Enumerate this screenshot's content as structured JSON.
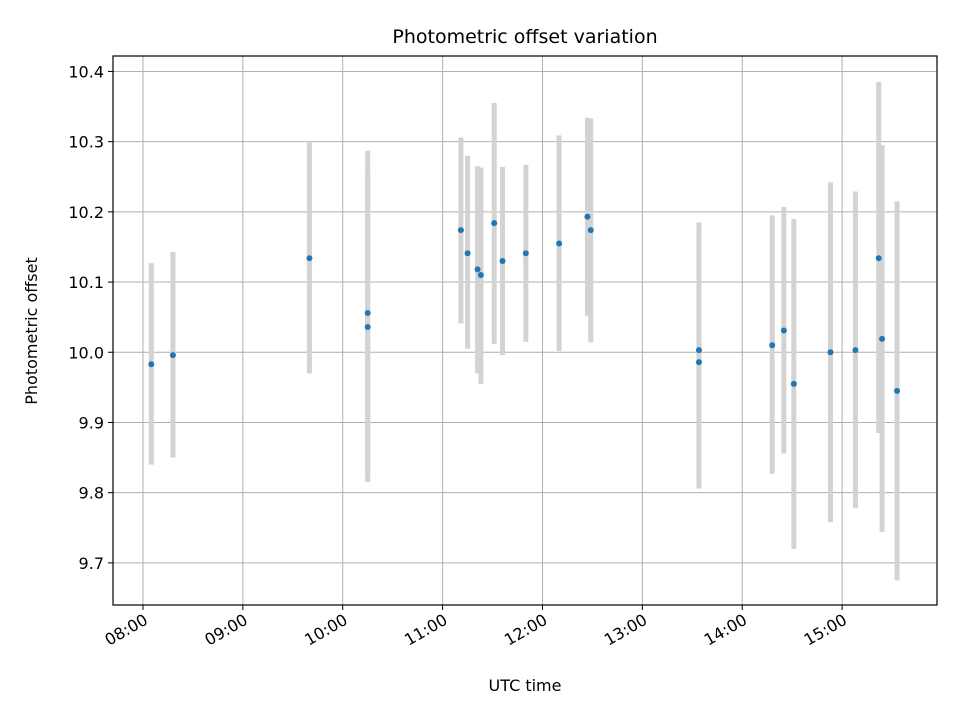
{
  "chart_data": {
    "type": "scatter",
    "title": "Photometric offset variation",
    "xlabel": "UTC time",
    "ylabel": "Photometric offset",
    "x_axis_kind": "time",
    "xlim": [
      "07:42",
      "15:57"
    ],
    "ylim": [
      9.64,
      10.422
    ],
    "x_ticks": [
      "08:00",
      "09:00",
      "10:00",
      "11:00",
      "12:00",
      "13:00",
      "14:00",
      "15:00"
    ],
    "y_ticks": [
      9.7,
      9.8,
      9.9,
      10.0,
      10.1,
      10.2,
      10.3,
      10.4
    ],
    "y_tick_labels": [
      "9.7",
      "9.8",
      "9.9",
      "10.0",
      "10.1",
      "10.2",
      "10.3",
      "10.4"
    ],
    "grid": true,
    "point_color": "#1f77b4",
    "errorbar_color": "#d3d3d3",
    "points": [
      {
        "t": "08:05",
        "y": 9.983,
        "lo": 9.84,
        "hi": 10.127
      },
      {
        "t": "08:18",
        "y": 9.996,
        "lo": 9.85,
        "hi": 10.143
      },
      {
        "t": "09:40",
        "y": 10.134,
        "lo": 9.97,
        "hi": 10.3
      },
      {
        "t": "10:15",
        "y": 10.036,
        "lo": 9.815,
        "hi": 10.255
      },
      {
        "t": "10:15",
        "y": 10.056,
        "lo": 9.825,
        "hi": 10.287
      },
      {
        "t": "11:11",
        "y": 10.174,
        "lo": 10.041,
        "hi": 10.306
      },
      {
        "t": "11:15",
        "y": 10.141,
        "lo": 10.005,
        "hi": 10.28
      },
      {
        "t": "11:21",
        "y": 10.118,
        "lo": 9.97,
        "hi": 10.265
      },
      {
        "t": "11:23",
        "y": 10.11,
        "lo": 9.955,
        "hi": 10.263
      },
      {
        "t": "11:31",
        "y": 10.184,
        "lo": 10.012,
        "hi": 10.355
      },
      {
        "t": "11:36",
        "y": 10.13,
        "lo": 9.996,
        "hi": 10.264
      },
      {
        "t": "11:50",
        "y": 10.141,
        "lo": 10.015,
        "hi": 10.267
      },
      {
        "t": "12:10",
        "y": 10.155,
        "lo": 10.002,
        "hi": 10.309
      },
      {
        "t": "12:27",
        "y": 10.193,
        "lo": 10.052,
        "hi": 10.334
      },
      {
        "t": "12:29",
        "y": 10.174,
        "lo": 10.014,
        "hi": 10.333
      },
      {
        "t": "13:34",
        "y": 9.986,
        "lo": 9.806,
        "hi": 10.166
      },
      {
        "t": "13:34",
        "y": 10.003,
        "lo": 9.82,
        "hi": 10.185
      },
      {
        "t": "14:18",
        "y": 10.01,
        "lo": 9.827,
        "hi": 10.195
      },
      {
        "t": "14:25",
        "y": 10.031,
        "lo": 9.856,
        "hi": 10.207
      },
      {
        "t": "14:31",
        "y": 9.955,
        "lo": 9.72,
        "hi": 10.19
      },
      {
        "t": "14:53",
        "y": 10.0,
        "lo": 9.758,
        "hi": 10.242
      },
      {
        "t": "15:08",
        "y": 10.003,
        "lo": 9.778,
        "hi": 10.229
      },
      {
        "t": "15:22",
        "y": 10.134,
        "lo": 9.885,
        "hi": 10.385
      },
      {
        "t": "15:24",
        "y": 10.019,
        "lo": 9.744,
        "hi": 10.295
      },
      {
        "t": "15:33",
        "y": 9.945,
        "lo": 9.675,
        "hi": 10.215
      }
    ]
  }
}
